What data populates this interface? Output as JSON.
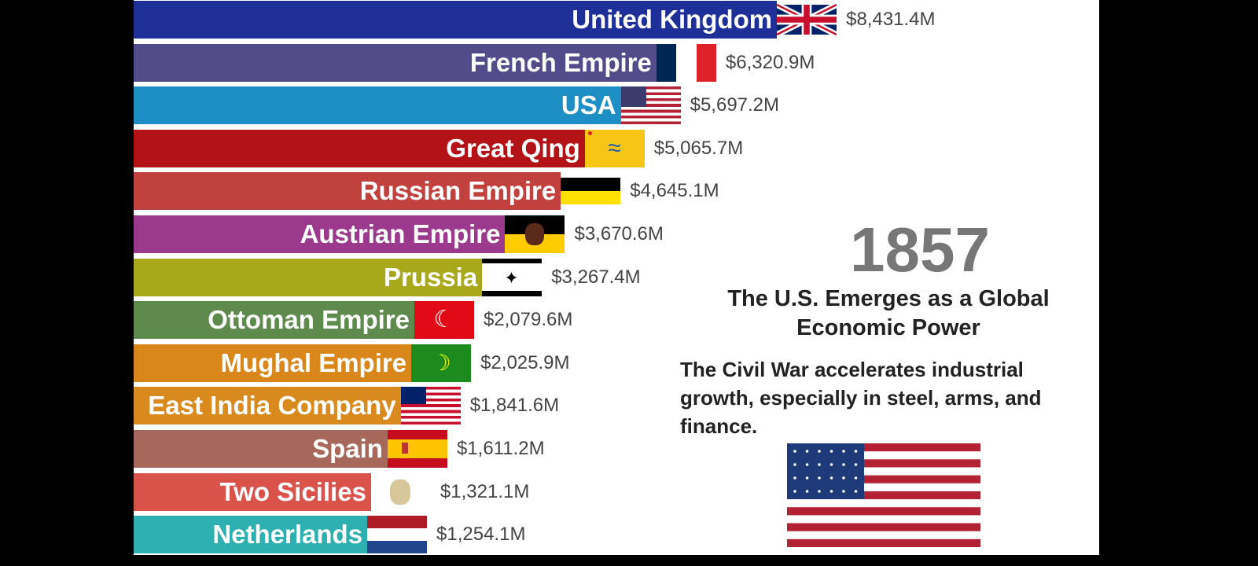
{
  "chart_data": {
    "type": "bar",
    "orientation": "horizontal",
    "unit": "$M",
    "categories": [
      "United Kingdom",
      "French Empire",
      "USA",
      "Great Qing",
      "Russian Empire",
      "Austrian Empire",
      "Prussia",
      "Ottoman Empire",
      "Mughal Empire",
      "East India Company",
      "Spain",
      "Two Sicilies",
      "Netherlands"
    ],
    "values": [
      8431.4,
      6320.9,
      5697.2,
      5065.7,
      4645.1,
      3670.6,
      3267.4,
      2079.6,
      2025.9,
      1841.6,
      1611.2,
      1321.1,
      1254.1
    ],
    "value_labels": [
      "$8,431.4M",
      "$6,320.9M",
      "$5,697.2M",
      "$5,065.7M",
      "$4,645.1M",
      "$3,670.6M",
      "$3,267.4M",
      "$2,079.6M",
      "$2,025.9M",
      "$1,841.6M",
      "$1,611.2M",
      "$1,321.1M",
      "$1,254.1M"
    ],
    "colors": [
      "#1f2f98",
      "#524c8a",
      "#1d8fc4",
      "#b31217",
      "#c0413d",
      "#9b3a8c",
      "#a8a81a",
      "#5e8a4e",
      "#d9861a",
      "#d98a1f",
      "#a5685a",
      "#d9534a",
      "#2fb0b0"
    ],
    "flags": [
      "uk-flag",
      "france-flag",
      "usa-flag",
      "qing-dragon-flag",
      "russia-imperial-flag",
      "austria-flag",
      "prussia-flag",
      "ottoman-flag",
      "mughal-flag",
      "east-india-company-flag",
      "spain-flag",
      "two-sicilies-flag",
      "netherlands-flag"
    ],
    "grid": false,
    "legend": "none"
  },
  "overlay": {
    "year": "1857",
    "headline": "The U.S. Emerges as a Global Economic Power",
    "description": "The Civil War accelerates industrial growth, especially in steel, arms, and finance.",
    "flag": "usa-flag"
  }
}
